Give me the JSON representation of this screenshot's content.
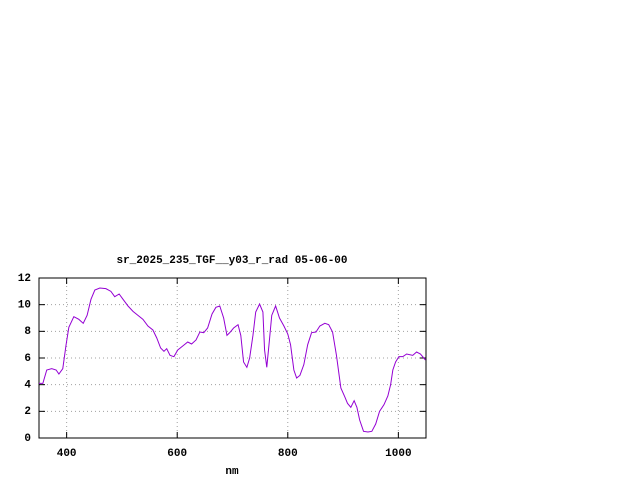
{
  "chart_data": {
    "type": "line",
    "title": "sr_2025_235_TGF__y03_r_rad 05-06-00",
    "x_label": "nm",
    "x": [
      350,
      357,
      364,
      373,
      381,
      386,
      393,
      399,
      404,
      413,
      422,
      430,
      437,
      444,
      451,
      460,
      471,
      480,
      487,
      495,
      502,
      511,
      520,
      529,
      538,
      547,
      556,
      563,
      570,
      576,
      581,
      587,
      594,
      601,
      610,
      619,
      626,
      634,
      641,
      648,
      655,
      663,
      670,
      677,
      684,
      690,
      695,
      702,
      710,
      715,
      720,
      726,
      731,
      737,
      742,
      749,
      755,
      758,
      762,
      766,
      771,
      778,
      785,
      793,
      800,
      805,
      811,
      816,
      822,
      829,
      836,
      843,
      851,
      858,
      867,
      874,
      881,
      888,
      896,
      903,
      908,
      914,
      920,
      925,
      930,
      937,
      945,
      952,
      959,
      966,
      974,
      981,
      986,
      990,
      995,
      1001,
      1008,
      1015,
      1026,
      1033,
      1040,
      1049
    ],
    "values": [
      4.1,
      4.1,
      5.1,
      5.2,
      5.1,
      4.8,
      5.2,
      7.0,
      8.3,
      9.1,
      8.9,
      8.6,
      9.2,
      10.4,
      11.1,
      11.25,
      11.2,
      11.0,
      10.6,
      10.8,
      10.4,
      9.9,
      9.5,
      9.2,
      8.9,
      8.4,
      8.1,
      7.5,
      6.75,
      6.5,
      6.7,
      6.2,
      6.1,
      6.6,
      6.9,
      7.2,
      7.05,
      7.35,
      7.95,
      7.9,
      8.25,
      9.3,
      9.8,
      9.9,
      9.0,
      7.7,
      7.9,
      8.25,
      8.5,
      7.7,
      5.7,
      5.3,
      6.0,
      7.7,
      9.45,
      10.05,
      9.45,
      6.6,
      5.3,
      7.0,
      9.2,
      9.9,
      9.0,
      8.4,
      7.8,
      7.0,
      5.1,
      4.5,
      4.7,
      5.5,
      7.0,
      7.9,
      7.95,
      8.4,
      8.6,
      8.5,
      7.95,
      6.2,
      3.75,
      3.1,
      2.6,
      2.3,
      2.8,
      2.3,
      1.35,
      0.5,
      0.45,
      0.5,
      1.05,
      2.0,
      2.5,
      3.15,
      4.0,
      5.1,
      5.7,
      6.1,
      6.1,
      6.3,
      6.2,
      6.45,
      6.3,
      5.85
    ],
    "color": "#9400d3",
    "xlim": [
      350,
      1050
    ],
    "xticks": [
      400,
      600,
      800,
      1000
    ],
    "ylim": [
      0,
      12
    ],
    "yticks": [
      0,
      2,
      4,
      6,
      8,
      10,
      12
    ],
    "grid": true
  }
}
